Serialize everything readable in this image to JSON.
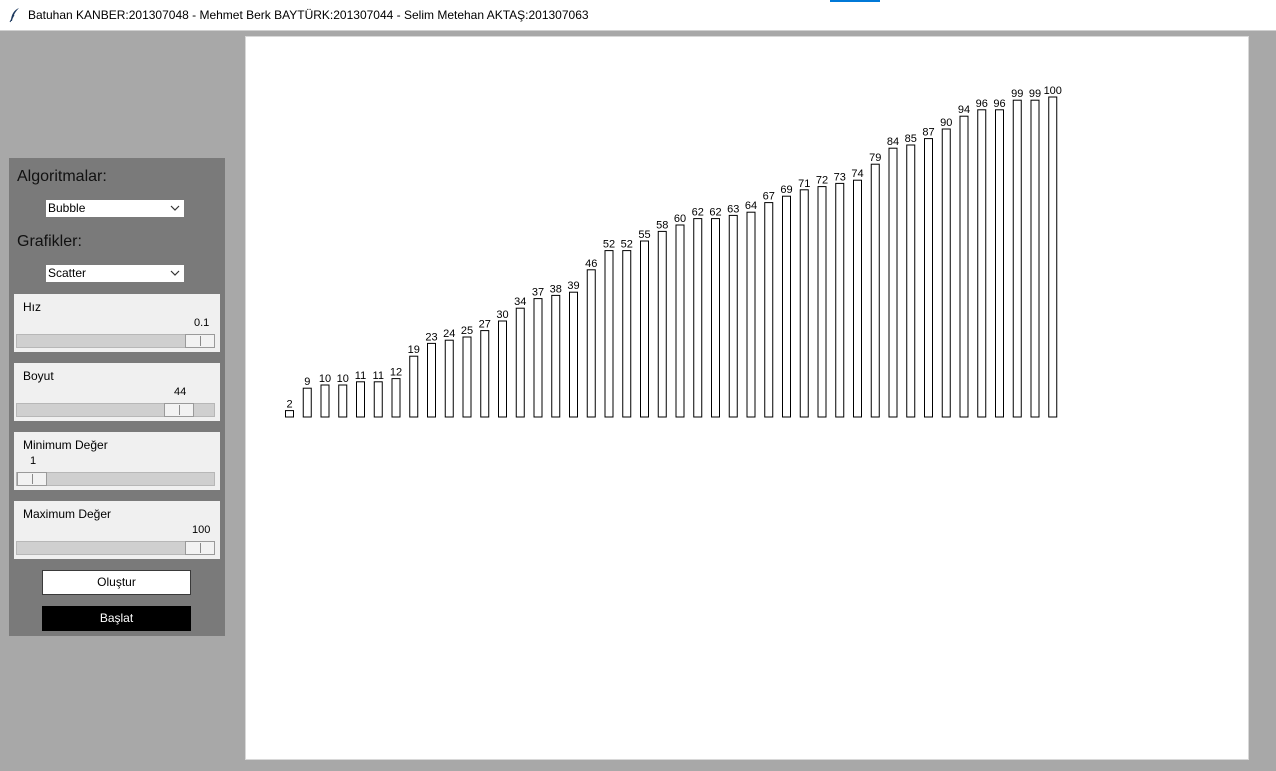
{
  "window": {
    "title": "Batuhan KANBER:201307048 - Mehmet Berk BAYTÜRK:201307044 - Selim Metehan AKTAŞ:201307063",
    "icon": "feather-icon"
  },
  "controls": {
    "algorithms_label": "Algoritmalar:",
    "algorithm_selected": "Bubble",
    "charts_label": "Grafikler:",
    "chart_selected": "Scatter",
    "speed": {
      "label": "Hız",
      "value": "0.1"
    },
    "size": {
      "label": "Boyut",
      "value": "44"
    },
    "min_value": {
      "label": "Minimum Değer",
      "value": "1"
    },
    "max_value": {
      "label": "Maximum Değer",
      "value": "100"
    },
    "create_button": "Oluştur",
    "start_button": "Başlat"
  },
  "chart_data": {
    "type": "bar",
    "values": [
      2,
      9,
      10,
      10,
      11,
      11,
      12,
      19,
      23,
      24,
      25,
      27,
      30,
      34,
      37,
      38,
      39,
      46,
      52,
      52,
      55,
      58,
      60,
      62,
      62,
      63,
      64,
      67,
      69,
      71,
      72,
      73,
      74,
      79,
      84,
      85,
      87,
      90,
      94,
      96,
      96,
      99,
      99,
      100
    ],
    "bar_fill": "#ffffff",
    "bar_stroke": "#000000",
    "grid": false
  }
}
